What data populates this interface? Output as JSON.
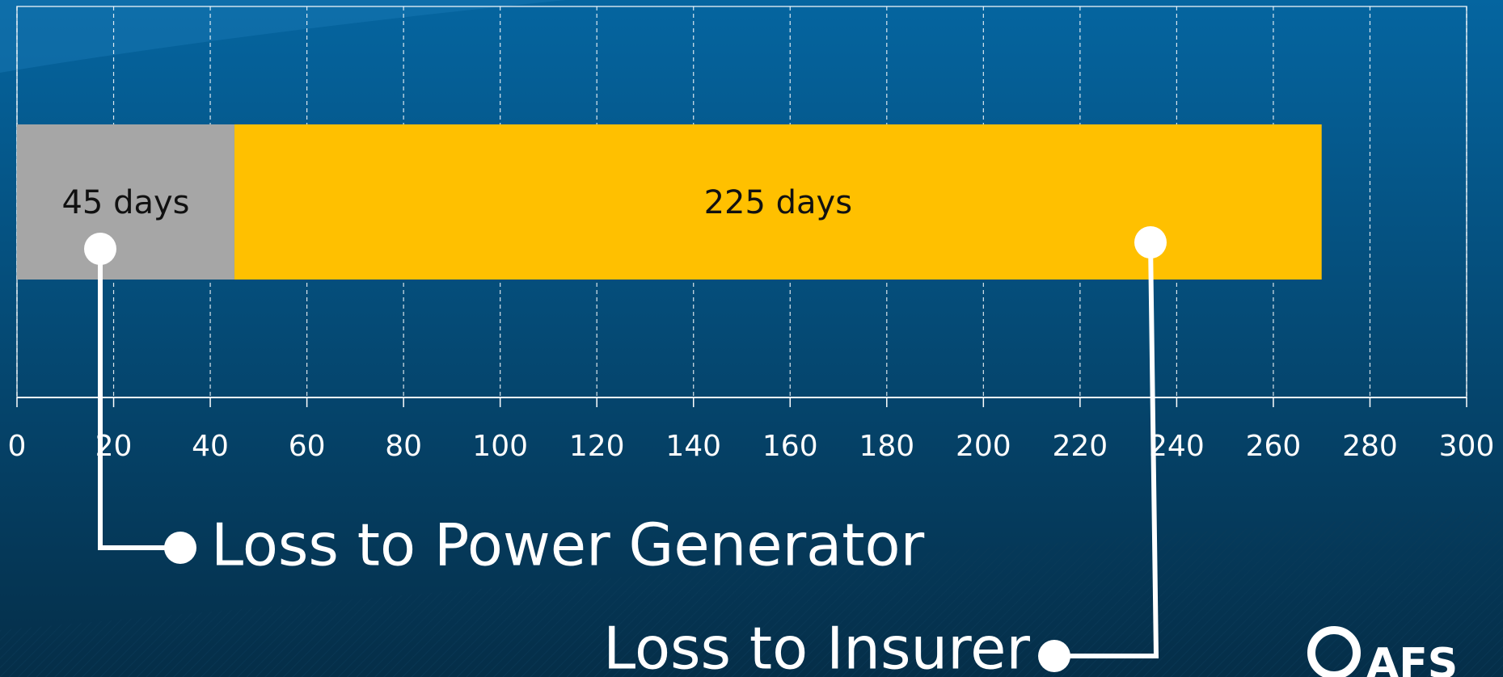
{
  "chart_data": {
    "type": "stacked-barh",
    "categories": [
      null
    ],
    "series": [
      {
        "color": "#a6a6a6",
        "values": [
          45
        ],
        "value_labels": [
          "45 days"
        ]
      },
      {
        "color": "#ffc000",
        "values": [
          225
        ],
        "value_labels": [
          "225 days"
        ]
      }
    ],
    "xlim": [
      0,
      300
    ],
    "xticks": [
      0,
      20,
      40,
      60,
      80,
      100,
      120,
      140,
      160,
      180,
      200,
      220,
      240,
      260,
      280,
      300
    ],
    "grid": true,
    "annotations": [
      "Loss to Power Generator",
      "Loss to Insurer"
    ]
  },
  "logo": "AFS"
}
